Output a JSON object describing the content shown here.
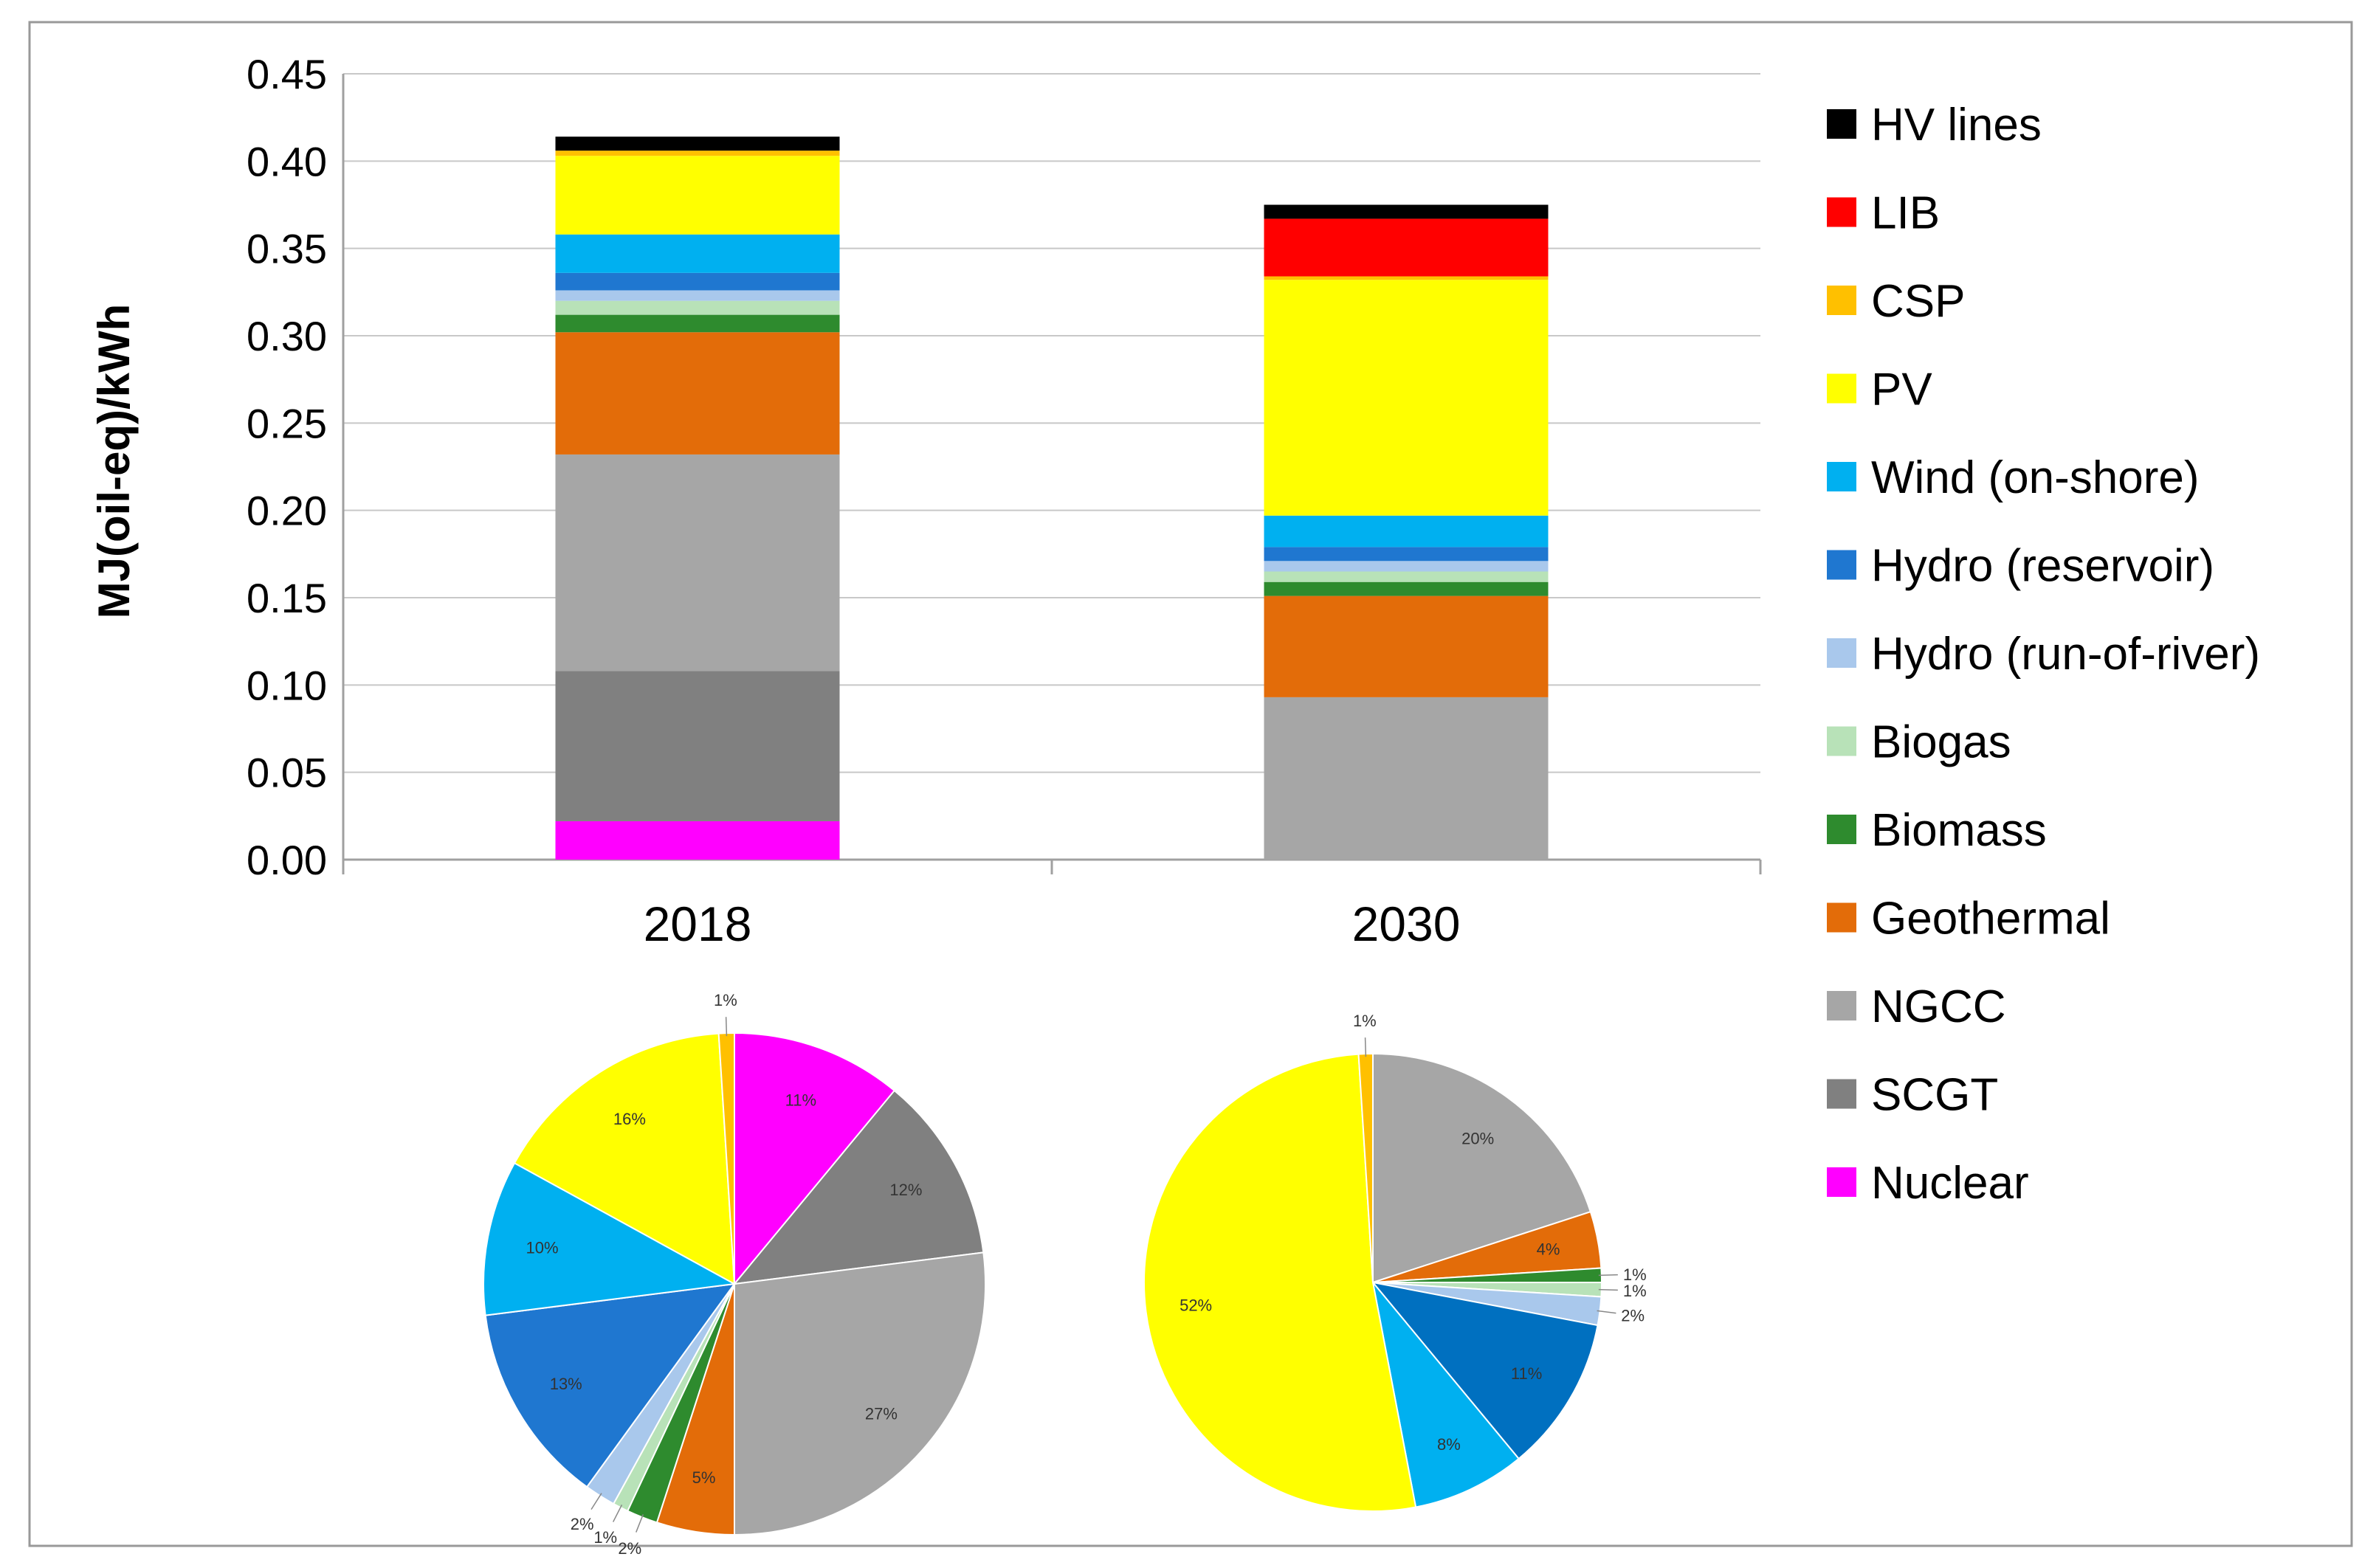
{
  "chart_data": [
    {
      "type": "bar",
      "stacked": true,
      "title": "",
      "xlabel": "",
      "ylabel": "MJ(oil-eq)/kWh",
      "ylim": [
        0,
        0.45
      ],
      "yticks": [
        "0.00",
        "0.05",
        "0.10",
        "0.15",
        "0.20",
        "0.25",
        "0.30",
        "0.35",
        "0.40",
        "0.45"
      ],
      "categories": [
        "2018",
        "2030"
      ],
      "grid": true,
      "legend_position": "right",
      "series": [
        {
          "name": "Nuclear",
          "color": "#FF00FF",
          "values": [
            0.022,
            0.0
          ]
        },
        {
          "name": "SCGT",
          "color": "#808080",
          "values": [
            0.086,
            0.0
          ]
        },
        {
          "name": "NGCC",
          "color": "#A6A6A6",
          "values": [
            0.124,
            0.093
          ]
        },
        {
          "name": "Geothermal",
          "color": "#E36C09",
          "values": [
            0.07,
            0.058
          ]
        },
        {
          "name": "Biomass",
          "color": "#2E8B2E",
          "values": [
            0.01,
            0.008
          ]
        },
        {
          "name": "Biogas",
          "color": "#B8E2B8",
          "values": [
            0.008,
            0.006
          ]
        },
        {
          "name": "Hydro (run-of-river)",
          "color": "#A9C8EC",
          "values": [
            0.006,
            0.006
          ]
        },
        {
          "name": "Hydro (reservoir)",
          "color": "#1F77D0",
          "values": [
            0.01,
            0.008
          ]
        },
        {
          "name": "Wind (on-shore)",
          "color": "#00B0F0",
          "values": [
            0.022,
            0.018
          ]
        },
        {
          "name": "PV",
          "color": "#FFFF00",
          "values": [
            0.045,
            0.135
          ]
        },
        {
          "name": "CSP",
          "color": "#FFC000",
          "values": [
            0.003,
            0.002
          ]
        },
        {
          "name": "LIB",
          "color": "#FF0000",
          "values": [
            0.0,
            0.033
          ]
        },
        {
          "name": "HV lines",
          "color": "#000000",
          "values": [
            0.008,
            0.008
          ]
        }
      ]
    },
    {
      "type": "pie",
      "title": "2018",
      "slices": [
        {
          "name": "Nuclear",
          "color": "#FF00FF",
          "value": 11,
          "label": "11%"
        },
        {
          "name": "SCGT",
          "color": "#808080",
          "value": 12,
          "label": "12%"
        },
        {
          "name": "NGCC",
          "color": "#A6A6A6",
          "value": 27,
          "label": "27%"
        },
        {
          "name": "Geothermal",
          "color": "#E36C09",
          "value": 5,
          "label": "5%"
        },
        {
          "name": "Biomass",
          "color": "#2E8B2E",
          "value": 2,
          "label": "2%"
        },
        {
          "name": "Biogas",
          "color": "#B8E2B8",
          "value": 1,
          "label": "1%"
        },
        {
          "name": "Hydro (run-of-river)",
          "color": "#A9C8EC",
          "value": 2,
          "label": "2%"
        },
        {
          "name": "Hydro (reservoir)",
          "color": "#1F77D0",
          "value": 13,
          "label": "13%"
        },
        {
          "name": "Wind (on-shore)",
          "color": "#00B0F0",
          "value": 10,
          "label": "10%"
        },
        {
          "name": "PV",
          "color": "#FFFF00",
          "value": 16,
          "label": "16%"
        },
        {
          "name": "CSP",
          "color": "#FFC000",
          "value": 1,
          "label": "1%"
        }
      ]
    },
    {
      "type": "pie",
      "title": "2030",
      "slices": [
        {
          "name": "NGCC",
          "color": "#A6A6A6",
          "value": 20,
          "label": "20%"
        },
        {
          "name": "Geothermal",
          "color": "#E36C09",
          "value": 4,
          "label": "4%"
        },
        {
          "name": "Biomass",
          "color": "#2E8B2E",
          "value": 1,
          "label": "1%"
        },
        {
          "name": "Biogas",
          "color": "#B8E2B8",
          "value": 1,
          "label": "1%"
        },
        {
          "name": "Hydro (run-of-river)",
          "color": "#A9C8EC",
          "value": 2,
          "label": "2%"
        },
        {
          "name": "Hydro (reservoir)",
          "color": "#0070C0",
          "value": 11,
          "label": "11%"
        },
        {
          "name": "Wind (on-shore)",
          "color": "#00B0F0",
          "value": 8,
          "label": "8%"
        },
        {
          "name": "PV",
          "color": "#FFFF00",
          "value": 52,
          "label": "52%"
        },
        {
          "name": "CSP",
          "color": "#FFC000",
          "value": 1,
          "label": "1%"
        }
      ]
    }
  ],
  "legend": {
    "items": [
      {
        "name": "HV lines",
        "color": "#000000"
      },
      {
        "name": "LIB",
        "color": "#FF0000"
      },
      {
        "name": "CSP",
        "color": "#FFC000"
      },
      {
        "name": "PV",
        "color": "#FFFF00"
      },
      {
        "name": "Wind (on-shore)",
        "color": "#00B0F0"
      },
      {
        "name": "Hydro (reservoir)",
        "color": "#1F77D0"
      },
      {
        "name": "Hydro (run-of-river)",
        "color": "#A9C8EC"
      },
      {
        "name": "Biogas",
        "color": "#B8E2B8"
      },
      {
        "name": "Biomass",
        "color": "#2E8B2E"
      },
      {
        "name": "Geothermal",
        "color": "#E36C09"
      },
      {
        "name": "NGCC",
        "color": "#A6A6A6"
      },
      {
        "name": "SCGT",
        "color": "#808080"
      },
      {
        "name": "Nuclear",
        "color": "#FF00FF"
      }
    ]
  }
}
